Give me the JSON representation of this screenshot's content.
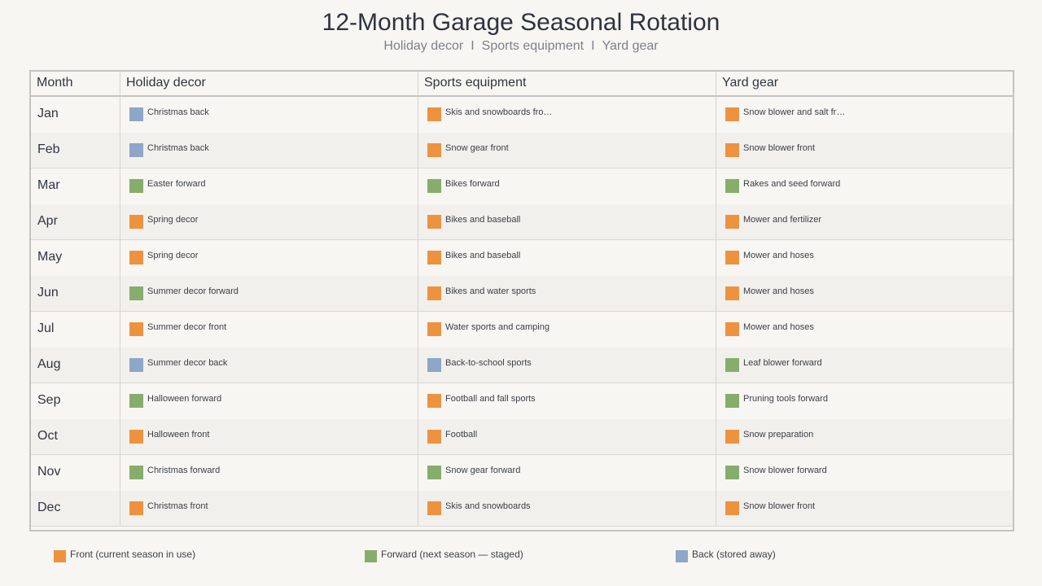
{
  "title": "12-Month Garage Seasonal Rotation",
  "subtitle_parts": [
    "Holiday decor",
    "Sports equipment",
    "Yard gear"
  ],
  "subtitle_sep": "I",
  "columns": [
    "Month",
    "Holiday decor",
    "Sports equipment",
    "Yard gear"
  ],
  "colors": {
    "front": "#ed9340",
    "forward": "#87ad6d",
    "back": "#8ea6c8"
  },
  "rows": [
    {
      "month": "Jan",
      "cells": [
        {
          "text": "Christmas back",
          "status": "back"
        },
        {
          "text": "Skis and snowboards fro…",
          "status": "front"
        },
        {
          "text": "Snow blower and salt fr…",
          "status": "front"
        }
      ]
    },
    {
      "month": "Feb",
      "cells": [
        {
          "text": "Christmas back",
          "status": "back"
        },
        {
          "text": "Snow gear front",
          "status": "front"
        },
        {
          "text": "Snow blower front",
          "status": "front"
        }
      ]
    },
    {
      "month": "Mar",
      "cells": [
        {
          "text": "Easter forward",
          "status": "forward"
        },
        {
          "text": "Bikes forward",
          "status": "forward"
        },
        {
          "text": "Rakes and seed forward",
          "status": "forward"
        }
      ]
    },
    {
      "month": "Apr",
      "cells": [
        {
          "text": "Spring decor",
          "status": "front"
        },
        {
          "text": "Bikes and baseball",
          "status": "front"
        },
        {
          "text": "Mower and fertilizer",
          "status": "front"
        }
      ]
    },
    {
      "month": "May",
      "cells": [
        {
          "text": "Spring decor",
          "status": "front"
        },
        {
          "text": "Bikes and baseball",
          "status": "front"
        },
        {
          "text": "Mower and hoses",
          "status": "front"
        }
      ]
    },
    {
      "month": "Jun",
      "cells": [
        {
          "text": "Summer decor forward",
          "status": "forward"
        },
        {
          "text": "Bikes and water sports",
          "status": "front"
        },
        {
          "text": "Mower and hoses",
          "status": "front"
        }
      ]
    },
    {
      "month": "Jul",
      "cells": [
        {
          "text": "Summer decor front",
          "status": "front"
        },
        {
          "text": "Water sports and camping",
          "status": "front"
        },
        {
          "text": "Mower and hoses",
          "status": "front"
        }
      ]
    },
    {
      "month": "Aug",
      "cells": [
        {
          "text": "Summer decor back",
          "status": "back"
        },
        {
          "text": "Back-to-school sports",
          "status": "back"
        },
        {
          "text": "Leaf blower forward",
          "status": "forward"
        }
      ]
    },
    {
      "month": "Sep",
      "cells": [
        {
          "text": "Halloween forward",
          "status": "forward"
        },
        {
          "text": "Football and fall sports",
          "status": "front"
        },
        {
          "text": "Pruning tools forward",
          "status": "forward"
        }
      ]
    },
    {
      "month": "Oct",
      "cells": [
        {
          "text": "Halloween front",
          "status": "front"
        },
        {
          "text": "Football",
          "status": "front"
        },
        {
          "text": "Snow preparation",
          "status": "front"
        }
      ]
    },
    {
      "month": "Nov",
      "cells": [
        {
          "text": "Christmas forward",
          "status": "forward"
        },
        {
          "text": "Snow gear forward",
          "status": "forward"
        },
        {
          "text": "Snow blower forward",
          "status": "forward"
        }
      ]
    },
    {
      "month": "Dec",
      "cells": [
        {
          "text": "Christmas front",
          "status": "front"
        },
        {
          "text": "Skis and snowboards",
          "status": "front"
        },
        {
          "text": "Snow blower front",
          "status": "front"
        }
      ]
    }
  ],
  "legend": [
    {
      "status": "front",
      "label": "Front (current season in use)"
    },
    {
      "status": "forward",
      "label": "Forward (next season — staged)"
    },
    {
      "status": "back",
      "label": "Back (stored away)"
    }
  ]
}
